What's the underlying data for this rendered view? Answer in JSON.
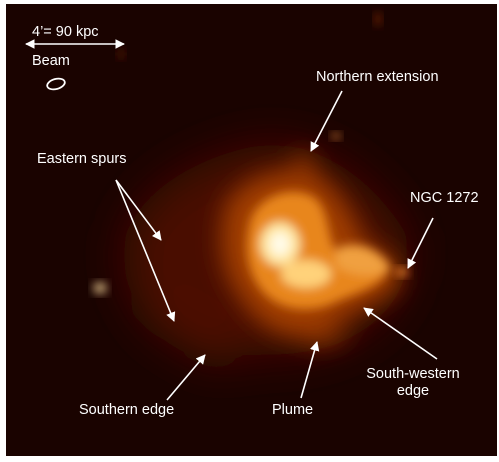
{
  "image": {
    "subject": "radio emission map of galaxy cluster",
    "colormap": [
      "#1a0300",
      "#5a1400",
      "#a84000",
      "#e88a20",
      "#ffd890",
      "#fff8e0"
    ],
    "label_color": "#ffffff"
  },
  "labels": {
    "scale": "4’= 90 kpc",
    "beam": "Beam",
    "northern_extension": "Northern extension",
    "eastern_spurs": "Eastern spurs",
    "ngc": "NGC 1272",
    "southern_edge": "Southern edge",
    "plume": "Plume",
    "south_western_line1": "South-western",
    "south_western_line2": "edge"
  }
}
